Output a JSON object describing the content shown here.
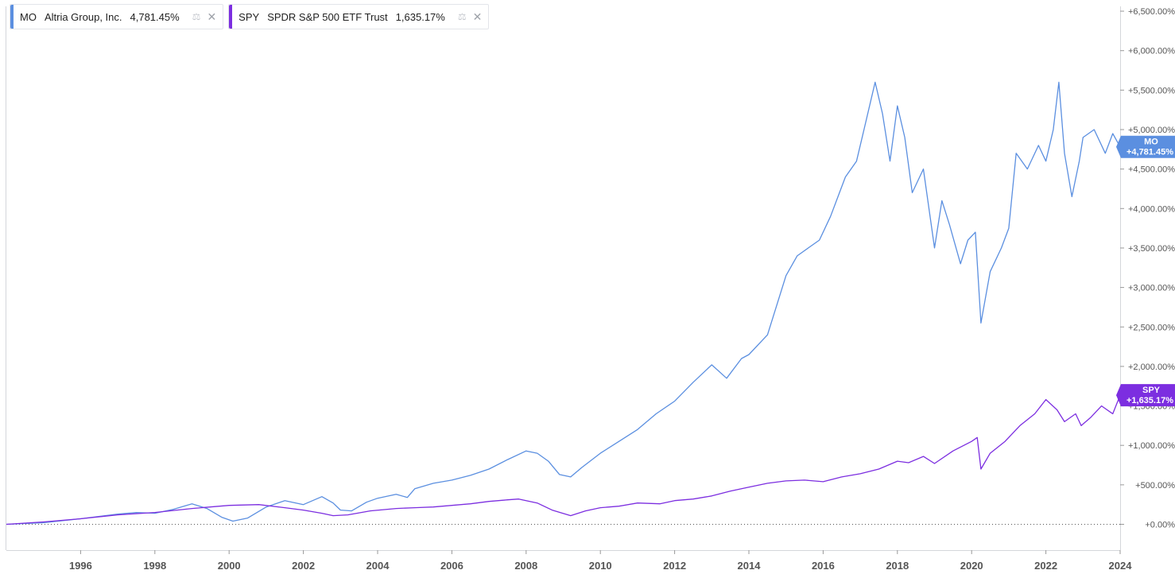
{
  "legend": [
    {
      "symbol": "MO",
      "name": "Altria Group, Inc.",
      "value": "4,781.45%",
      "color": "#5b8fe0"
    },
    {
      "symbol": "SPY",
      "name": "SPDR S&P 500 ETF Trust",
      "value": "1,635.17%",
      "color": "#7c2ee0"
    }
  ],
  "price_tags": [
    {
      "symbol": "MO",
      "value": "+4,781.45%",
      "color": "#5b8fe0"
    },
    {
      "symbol": "SPY",
      "value": "+1,635.17%",
      "color": "#7c2ee0"
    }
  ],
  "chart_data": {
    "type": "line",
    "x_ticks": [
      "1996",
      "1998",
      "2000",
      "2002",
      "2004",
      "2006",
      "2008",
      "2010",
      "2012",
      "2014",
      "2016",
      "2018",
      "2020",
      "2022",
      "2024"
    ],
    "y_ticks": [
      "+0.00%",
      "+500.00%",
      "+1,000.00%",
      "+1,500.00%",
      "+2,000.00%",
      "+2,500.00%",
      "+3,000.00%",
      "+3,500.00%",
      "+4,000.00%",
      "+4,500.00%",
      "+5,000.00%",
      "+5,500.00%",
      "+6,000.00%",
      "+6,500.00%"
    ],
    "ylim": [
      -300,
      6500
    ],
    "xlim": [
      1994.0,
      2024.0
    ],
    "series": [
      {
        "name": "MO",
        "color": "#5b8fe0",
        "points": [
          [
            1994.0,
            0
          ],
          [
            1995.0,
            20
          ],
          [
            1996.0,
            70
          ],
          [
            1997.0,
            130
          ],
          [
            1997.5,
            150
          ],
          [
            1998.0,
            140
          ],
          [
            1998.5,
            190
          ],
          [
            1999.0,
            260
          ],
          [
            1999.4,
            200
          ],
          [
            1999.8,
            90
          ],
          [
            2000.1,
            40
          ],
          [
            2000.5,
            80
          ],
          [
            2001.0,
            220
          ],
          [
            2001.5,
            300
          ],
          [
            2002.0,
            250
          ],
          [
            2002.5,
            350
          ],
          [
            2002.8,
            270
          ],
          [
            2003.0,
            180
          ],
          [
            2003.3,
            170
          ],
          [
            2003.7,
            280
          ],
          [
            2004.0,
            330
          ],
          [
            2004.5,
            380
          ],
          [
            2004.8,
            340
          ],
          [
            2005.0,
            450
          ],
          [
            2005.5,
            520
          ],
          [
            2006.0,
            560
          ],
          [
            2006.5,
            620
          ],
          [
            2007.0,
            700
          ],
          [
            2007.5,
            820
          ],
          [
            2008.0,
            930
          ],
          [
            2008.3,
            900
          ],
          [
            2008.6,
            800
          ],
          [
            2008.9,
            630
          ],
          [
            2009.2,
            600
          ],
          [
            2009.5,
            720
          ],
          [
            2010.0,
            900
          ],
          [
            2010.5,
            1050
          ],
          [
            2011.0,
            1200
          ],
          [
            2011.5,
            1400
          ],
          [
            2012.0,
            1560
          ],
          [
            2012.5,
            1800
          ],
          [
            2013.0,
            2020
          ],
          [
            2013.4,
            1850
          ],
          [
            2013.8,
            2100
          ],
          [
            2014.0,
            2150
          ],
          [
            2014.5,
            2400
          ],
          [
            2015.0,
            3150
          ],
          [
            2015.3,
            3400
          ],
          [
            2015.6,
            3500
          ],
          [
            2015.9,
            3600
          ],
          [
            2016.2,
            3900
          ],
          [
            2016.6,
            4400
          ],
          [
            2016.9,
            4600
          ],
          [
            2017.1,
            5000
          ],
          [
            2017.4,
            5600
          ],
          [
            2017.6,
            5200
          ],
          [
            2017.8,
            4600
          ],
          [
            2018.0,
            5300
          ],
          [
            2018.2,
            4900
          ],
          [
            2018.4,
            4200
          ],
          [
            2018.7,
            4500
          ],
          [
            2019.0,
            3500
          ],
          [
            2019.2,
            4100
          ],
          [
            2019.4,
            3800
          ],
          [
            2019.7,
            3300
          ],
          [
            2019.9,
            3600
          ],
          [
            2020.1,
            3700
          ],
          [
            2020.25,
            2550
          ],
          [
            2020.5,
            3200
          ],
          [
            2020.8,
            3500
          ],
          [
            2021.0,
            3750
          ],
          [
            2021.2,
            4700
          ],
          [
            2021.5,
            4500
          ],
          [
            2021.8,
            4800
          ],
          [
            2022.0,
            4600
          ],
          [
            2022.2,
            5000
          ],
          [
            2022.35,
            5600
          ],
          [
            2022.5,
            4700
          ],
          [
            2022.7,
            4150
          ],
          [
            2022.9,
            4600
          ],
          [
            2023.0,
            4900
          ],
          [
            2023.3,
            5000
          ],
          [
            2023.6,
            4700
          ],
          [
            2023.8,
            4950
          ],
          [
            2024.0,
            4781.45
          ]
        ]
      },
      {
        "name": "SPY",
        "color": "#7c2ee0",
        "points": [
          [
            1994.0,
            0
          ],
          [
            1995.0,
            30
          ],
          [
            1996.0,
            70
          ],
          [
            1997.0,
            120
          ],
          [
            1998.0,
            150
          ],
          [
            1999.0,
            200
          ],
          [
            2000.0,
            240
          ],
          [
            2000.8,
            250
          ],
          [
            2001.5,
            210
          ],
          [
            2002.0,
            180
          ],
          [
            2002.5,
            140
          ],
          [
            2002.8,
            110
          ],
          [
            2003.2,
            120
          ],
          [
            2003.8,
            170
          ],
          [
            2004.5,
            200
          ],
          [
            2005.0,
            210
          ],
          [
            2005.5,
            220
          ],
          [
            2006.0,
            240
          ],
          [
            2006.5,
            260
          ],
          [
            2007.0,
            290
          ],
          [
            2007.5,
            310
          ],
          [
            2007.8,
            320
          ],
          [
            2008.3,
            270
          ],
          [
            2008.7,
            180
          ],
          [
            2009.2,
            110
          ],
          [
            2009.6,
            170
          ],
          [
            2010.0,
            210
          ],
          [
            2010.5,
            230
          ],
          [
            2011.0,
            270
          ],
          [
            2011.6,
            260
          ],
          [
            2012.0,
            300
          ],
          [
            2012.5,
            320
          ],
          [
            2013.0,
            360
          ],
          [
            2013.5,
            420
          ],
          [
            2014.0,
            470
          ],
          [
            2014.5,
            520
          ],
          [
            2015.0,
            550
          ],
          [
            2015.5,
            560
          ],
          [
            2016.0,
            540
          ],
          [
            2016.5,
            600
          ],
          [
            2017.0,
            640
          ],
          [
            2017.5,
            700
          ],
          [
            2018.0,
            800
          ],
          [
            2018.3,
            780
          ],
          [
            2018.7,
            860
          ],
          [
            2019.0,
            770
          ],
          [
            2019.5,
            930
          ],
          [
            2020.0,
            1050
          ],
          [
            2020.15,
            1100
          ],
          [
            2020.25,
            700
          ],
          [
            2020.5,
            900
          ],
          [
            2020.9,
            1050
          ],
          [
            2021.3,
            1250
          ],
          [
            2021.7,
            1400
          ],
          [
            2022.0,
            1580
          ],
          [
            2022.3,
            1450
          ],
          [
            2022.5,
            1300
          ],
          [
            2022.8,
            1400
          ],
          [
            2022.95,
            1250
          ],
          [
            2023.2,
            1350
          ],
          [
            2023.5,
            1500
          ],
          [
            2023.8,
            1400
          ],
          [
            2024.0,
            1635.17
          ]
        ]
      }
    ]
  }
}
